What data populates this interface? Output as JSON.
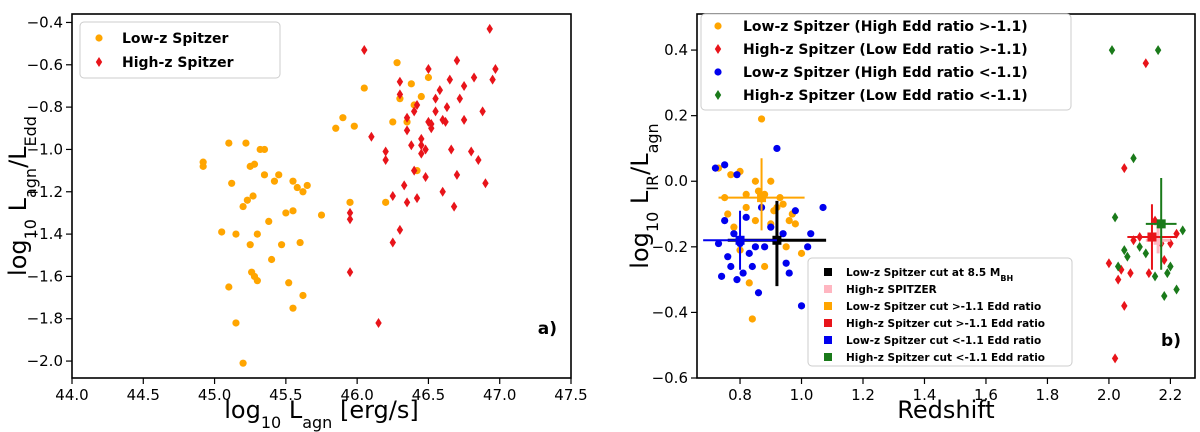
{
  "chart_data": [
    {
      "type": "scatter",
      "panel_label": "a)",
      "xlabel": "log₁₀ L_agn [erg/s]",
      "xlabel_parts": {
        "pre": "log",
        "sub1": "10",
        "mid": " L",
        "sub2": "agn",
        "post": " [erg/s]"
      },
      "ylabel_parts": {
        "pre": "log",
        "sub1": "10",
        "mid": " L",
        "sub2": "agn",
        "mid2": "/L",
        "sub3": "Edd"
      },
      "xlim": [
        44.0,
        47.5
      ],
      "ylim": [
        -2.08,
        -0.36
      ],
      "xticks": [
        44.0,
        44.5,
        45.0,
        45.5,
        46.0,
        46.5,
        47.0,
        47.5
      ],
      "xtick_labels": [
        "44.0",
        "44.5",
        "45.0",
        "45.5",
        "46.0",
        "46.5",
        "47.0",
        "47.5"
      ],
      "yticks": [
        -2.0,
        -1.8,
        -1.6,
        -1.4,
        -1.2,
        -1.0,
        -0.8,
        -0.6,
        -0.4
      ],
      "ytick_labels": [
        "−2.0",
        "−1.8",
        "−1.6",
        "−1.4",
        "−1.2",
        "−1.0",
        "−0.8",
        "−0.6",
        "−0.4"
      ],
      "legend_position": "top-left",
      "series": [
        {
          "name": "Low-z Spitzer",
          "color": "#ffa500",
          "marker": "circle",
          "x": [
            44.92,
            44.92,
            45.05,
            45.1,
            45.12,
            45.15,
            45.2,
            45.22,
            45.23,
            45.25,
            45.28,
            45.25,
            45.26,
            45.27,
            45.28,
            45.3,
            45.32,
            45.35,
            45.38,
            45.4,
            45.42,
            45.45,
            45.47,
            45.5,
            45.52,
            45.55,
            45.55,
            45.58,
            45.6,
            45.62,
            45.65,
            45.75,
            45.1,
            45.15,
            45.2,
            45.3,
            45.35,
            45.55,
            45.62,
            45.85,
            45.9,
            45.95,
            45.98,
            46.05,
            46.2,
            46.25,
            46.28,
            46.3,
            46.35,
            46.38,
            46.4,
            46.45,
            46.5,
            46.42
          ],
          "y": [
            -1.06,
            -1.08,
            -1.39,
            -0.97,
            -1.16,
            -1.4,
            -1.27,
            -0.97,
            -1.24,
            -1.08,
            -1.07,
            -1.45,
            -1.58,
            -1.22,
            -1.6,
            -1.62,
            -1.0,
            -1.12,
            -1.34,
            -1.52,
            -1.15,
            -1.12,
            -1.45,
            -1.3,
            -1.63,
            -1.75,
            -1.15,
            -1.18,
            -1.44,
            -1.69,
            -1.17,
            -1.31,
            -1.65,
            -1.82,
            -2.01,
            -1.4,
            -1.0,
            -1.29,
            -1.2,
            -0.9,
            -0.85,
            -1.25,
            -0.89,
            -0.71,
            -1.25,
            -0.87,
            -0.59,
            -0.76,
            -0.87,
            -0.69,
            -0.79,
            -0.75,
            -0.66,
            -1.1
          ]
        },
        {
          "name": "High-z Spitzer",
          "color": "#e8141a",
          "marker": "diamond",
          "x": [
            45.95,
            46.05,
            45.95,
            46.1,
            45.95,
            46.15,
            46.2,
            46.25,
            46.3,
            46.33,
            46.35,
            46.4,
            46.42,
            46.45,
            46.48,
            46.5,
            46.52,
            46.55,
            46.58,
            46.6,
            46.62,
            46.65,
            46.68,
            46.7,
            46.72,
            46.75,
            46.8,
            46.82,
            46.88,
            46.9,
            46.93,
            46.95,
            46.97,
            46.2,
            46.25,
            46.3,
            46.35,
            46.38,
            46.4,
            46.42,
            46.45,
            46.48,
            46.52,
            46.55,
            46.6,
            46.63,
            46.66,
            46.7,
            46.75,
            46.85,
            46.35,
            46.3,
            46.45,
            46.5
          ],
          "y": [
            -1.3,
            -0.53,
            -1.33,
            -0.94,
            -1.58,
            -1.82,
            -1.01,
            -1.44,
            -1.38,
            -1.17,
            -0.85,
            -0.82,
            -1.23,
            -0.98,
            -1.13,
            -0.62,
            -0.88,
            -0.82,
            -0.72,
            -1.2,
            -0.87,
            -0.67,
            -1.27,
            -0.58,
            -0.76,
            -0.86,
            -1.01,
            -0.66,
            -0.82,
            -1.16,
            -0.43,
            -0.67,
            -0.62,
            -1.05,
            -1.22,
            -0.74,
            -0.91,
            -0.98,
            -1.1,
            -0.79,
            -1.02,
            -1.0,
            -0.9,
            -0.76,
            -0.86,
            -0.8,
            -1.0,
            -1.12,
            -0.7,
            -1.05,
            -1.25,
            -0.68,
            -0.95,
            -0.87
          ]
        }
      ]
    },
    {
      "type": "scatter",
      "panel_label": "b)",
      "xlabel": "Redshift",
      "ylabel_parts": {
        "pre": "log",
        "sub1": "10",
        "mid": " L",
        "sub2": "IR",
        "mid2": "/L",
        "sub3": "agn"
      },
      "xlim": [
        0.66,
        2.28
      ],
      "ylim": [
        -0.6,
        0.51
      ],
      "xticks": [
        0.8,
        1.0,
        1.2,
        1.4,
        1.6,
        1.8,
        2.0,
        2.2
      ],
      "xtick_labels": [
        "0.8",
        "1.0",
        "1.2",
        "1.4",
        "1.6",
        "1.8",
        "2.0",
        "2.2"
      ],
      "yticks": [
        -0.6,
        -0.4,
        -0.2,
        0.0,
        0.2,
        0.4
      ],
      "ytick_labels": [
        "−0.6",
        "−0.4",
        "−0.2",
        "0.0",
        "0.2",
        "0.4"
      ],
      "legend_position": "top",
      "series": [
        {
          "name": "Low-z Spitzer (High Edd ratio >-1.1)",
          "color": "#ffa500",
          "marker": "circle",
          "x": [
            0.73,
            0.75,
            0.77,
            0.78,
            0.8,
            0.82,
            0.83,
            0.84,
            0.85,
            0.86,
            0.87,
            0.88,
            0.9,
            0.91,
            0.92,
            0.94,
            0.95,
            0.96,
            0.98,
            1.0,
            0.88,
            0.8,
            0.85,
            0.93,
            0.97,
            0.76,
            0.82,
            0.9
          ],
          "y": [
            0.04,
            -0.05,
            0.02,
            -0.14,
            -0.21,
            -0.08,
            -0.31,
            -0.42,
            0.0,
            -0.03,
            0.19,
            -0.04,
            0.0,
            -0.09,
            -0.08,
            -0.07,
            -0.2,
            -0.12,
            -0.13,
            -0.22,
            -0.26,
            0.03,
            -0.12,
            -0.05,
            -0.1,
            -0.1,
            -0.04,
            -0.13
          ]
        },
        {
          "name": "High-z Spitzer (Low Edd ratio >-1.1)",
          "color": "#e8141a",
          "marker": "diamond",
          "x": [
            2.0,
            2.02,
            2.04,
            2.05,
            2.07,
            2.08,
            2.1,
            2.12,
            2.15,
            2.17,
            2.18,
            2.2,
            2.22,
            2.05,
            2.13,
            2.03
          ],
          "y": [
            -0.25,
            -0.54,
            -0.27,
            0.04,
            -0.28,
            -0.18,
            -0.17,
            0.36,
            -0.12,
            -0.19,
            -0.24,
            -0.19,
            -0.16,
            -0.38,
            -0.28,
            -0.3
          ]
        },
        {
          "name": "Low-z Spitzer (High Edd ratio <-1.1)",
          "color": "#0000ee",
          "marker": "circle",
          "x": [
            0.72,
            0.73,
            0.74,
            0.75,
            0.76,
            0.77,
            0.78,
            0.79,
            0.8,
            0.81,
            0.82,
            0.83,
            0.84,
            0.86,
            0.87,
            0.88,
            0.9,
            0.92,
            0.94,
            0.96,
            0.98,
            1.0,
            1.02,
            1.05,
            1.07,
            0.75,
            0.79,
            0.85,
            0.95,
            1.03
          ],
          "y": [
            0.04,
            -0.19,
            -0.29,
            0.05,
            -0.23,
            -0.26,
            -0.16,
            0.02,
            -0.19,
            -0.28,
            -0.11,
            -0.22,
            -0.26,
            -0.34,
            -0.08,
            -0.2,
            -0.14,
            0.1,
            -0.16,
            -0.28,
            -0.09,
            -0.38,
            -0.2,
            -0.36,
            -0.08,
            -0.12,
            -0.3,
            -0.2,
            -0.25,
            -0.16
          ]
        },
        {
          "name": "High-z Spitzer (Low Edd ratio <-1.1)",
          "color": "#1a7a1a",
          "marker": "diamond",
          "x": [
            2.01,
            2.02,
            2.03,
            2.05,
            2.08,
            2.1,
            2.12,
            2.15,
            2.16,
            2.18,
            2.2,
            2.22,
            2.24,
            2.06,
            2.19
          ],
          "y": [
            0.4,
            -0.11,
            -0.26,
            -0.21,
            0.07,
            -0.2,
            -0.22,
            -0.29,
            0.4,
            -0.35,
            -0.26,
            -0.33,
            -0.15,
            -0.23,
            -0.28
          ]
        }
      ],
      "medians": [
        {
          "name": "Low-z Spitzer cut at 8.5 M_BH",
          "label_parts": {
            "pre": "Low-z Spitzer cut at 8.5 M",
            "sub": "BH"
          },
          "color": "#000000",
          "x": 0.92,
          "y": -0.18,
          "xerr": 0.16,
          "yerr": [
            0.14,
            0.12
          ],
          "lw": 3
        },
        {
          "name": "High-z SPITZER",
          "color": "#ffb6c1",
          "x": 2.16,
          "y": -0.18,
          "xerr": 0.04,
          "yerr": [
            0.04,
            0.04
          ],
          "lw": 3
        },
        {
          "name": "Low-z Spitzer cut >-1.1 Edd ratio",
          "color": "#ffa500",
          "x": 0.87,
          "y": -0.05,
          "xerr": 0.14,
          "yerr": [
            0.1,
            0.12
          ],
          "lw": 2
        },
        {
          "name": "High-z Spitzer cut >-1.1 Edd ratio",
          "color": "#e8141a",
          "x": 2.14,
          "y": -0.17,
          "xerr": 0.08,
          "yerr": [
            0.1,
            0.1
          ],
          "lw": 2
        },
        {
          "name": "Low-z Spitzer cut <-1.1 Edd ratio",
          "color": "#0000ee",
          "x": 0.8,
          "y": -0.18,
          "xerr": 0.12,
          "yerr": [
            0.09,
            0.09
          ],
          "lw": 2
        },
        {
          "name": "High-z Spitzer cut <-1.1 Edd ratio",
          "color": "#1a7a1a",
          "x": 2.17,
          "y": -0.13,
          "xerr": 0.05,
          "yerr": [
            0.14,
            0.14
          ],
          "lw": 2
        }
      ]
    }
  ]
}
